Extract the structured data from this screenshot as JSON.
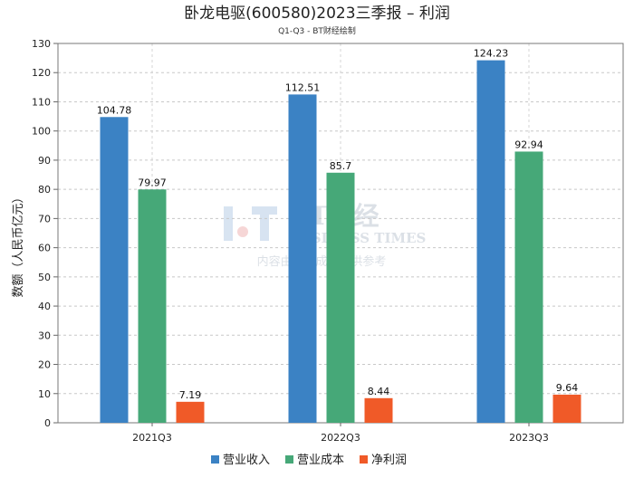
{
  "title": "卧龙电驱(600580)2023三季报 – 利润",
  "subtitle": "Q1-Q3 - BT财经绘制",
  "watermark": {
    "logo_text": "BT财经",
    "brand_text": "BUSINESS TIMES",
    "note": "内容由AI生成，仅供参考"
  },
  "chart_data": {
    "type": "bar",
    "title": "卧龙电驱(600580)2023三季报 – 利润",
    "subtitle": "Q1-Q3 - BT财经绘制",
    "xlabel": "",
    "ylabel": "数额（人民币亿元）",
    "ylim": [
      0,
      130
    ],
    "yticks": [
      0,
      10,
      20,
      30,
      40,
      50,
      60,
      70,
      80,
      90,
      100,
      110,
      120,
      130
    ],
    "grid": true,
    "legend_position": "bottom-center",
    "categories": [
      "2021Q3",
      "2022Q3",
      "2023Q3"
    ],
    "series": [
      {
        "name": "营业收入",
        "color": "#3b82c4",
        "values": [
          104.78,
          112.51,
          124.23
        ]
      },
      {
        "name": "营业成本",
        "color": "#46a878",
        "values": [
          79.97,
          85.7,
          92.94
        ]
      },
      {
        "name": "净利润",
        "color": "#f05a28",
        "values": [
          7.19,
          8.44,
          9.64
        ]
      }
    ]
  }
}
